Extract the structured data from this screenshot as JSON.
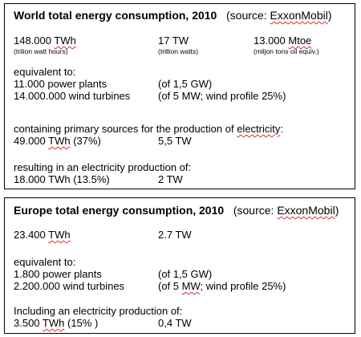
{
  "world": {
    "title": "World total energy consumption, 2010",
    "source_prefix": "(source: ",
    "source_name": "ExxonMobil",
    "source_suffix": ")",
    "twh_value": "148.000 ",
    "twh_unit": "TWh",
    "twh_note": "(trilion watt hours)",
    "tw_value": "17 TW",
    "tw_note": "(trillion watts)",
    "mtoe_value": "13.000 ",
    "mtoe_unit": "Mtoe",
    "mtoe_note": "(miljon tons oil equiv.)",
    "equivalent_label": "equivalent to:",
    "power_plants": "11.000 power plants",
    "power_plants_note": "(of 1,5 GW)",
    "wind_turbines": "14.000.000 wind turbines",
    "wind_turbines_note": "(of 5 MW; wind profile 25%)",
    "primary_label_a": "containing primary sources  for the production of ",
    "primary_label_b": "electricity",
    "primary_label_c": ":",
    "primary_value_a": "49.000 ",
    "primary_value_unit": "TWh",
    "primary_value_b": " (37%)",
    "primary_tw": "5,5 TW",
    "result_label": "resulting in an electricity production of:",
    "result_value": "18.000 TWh (13.5%)",
    "result_tw": "2 TW"
  },
  "europe": {
    "title": "Europe total energy consumption, 2010",
    "source_prefix": "(source: ",
    "source_name": "ExxonMobil",
    "source_suffix": ")",
    "twh_value": "23.400 ",
    "twh_unit": "TWh",
    "tw_value": "2.7 TW",
    "equivalent_label": "equivalent to:",
    "power_plants": "1.800 power plants",
    "power_plants_note": "(of 1,5 GW)",
    "wind_turbines": "2.200.000 wind turbines",
    "wind_turbines_note_a": "(of 5 ",
    "wind_turbines_note_unit": "MW",
    "wind_turbines_note_b": "; wind profile 25%)",
    "including_label": "Including an electricity production of:",
    "including_value_a": "3.500 ",
    "including_value_unit": "TWh",
    "including_value_b": "  (15% )",
    "including_tw": "0,4 TW"
  }
}
